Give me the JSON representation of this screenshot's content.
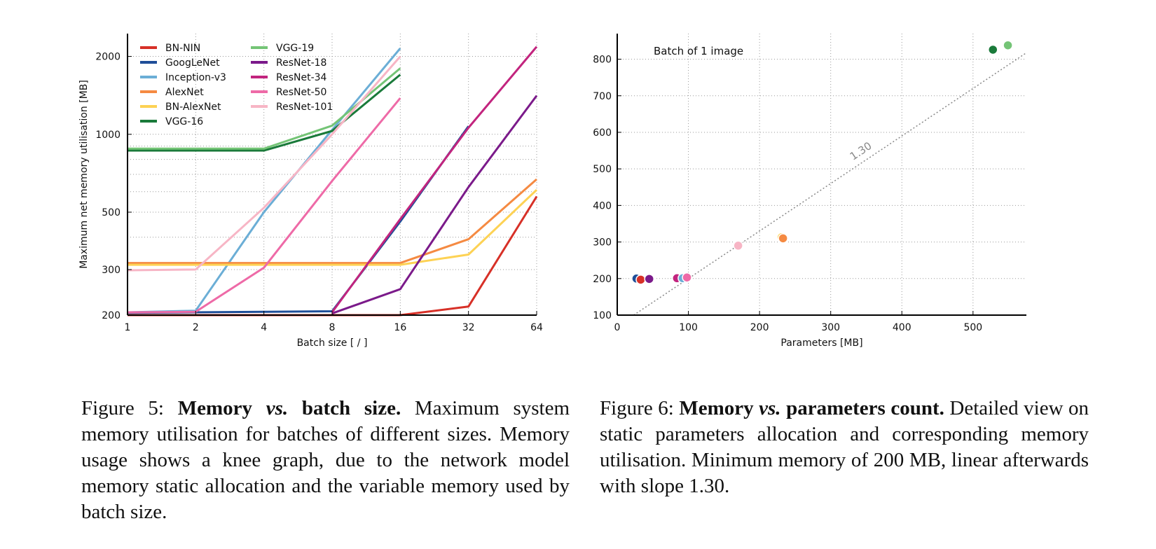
{
  "chart_data": [
    {
      "type": "line",
      "title": "",
      "xlabel": "Batch size [ / ]",
      "ylabel": "Maximum net memory utilisation [MB]",
      "x_scale": "log2",
      "y_scale": "log",
      "x": [
        1,
        2,
        4,
        8,
        16,
        32,
        64
      ],
      "x_tick_labels": [
        "1",
        "2",
        "4",
        "8",
        "16",
        "32",
        "64"
      ],
      "y_ticks": [
        200,
        300,
        500,
        1000,
        2000
      ],
      "y_tick_labels": [
        "200",
        "300",
        "500",
        "1000",
        "2000"
      ],
      "ylim": [
        200,
        2450
      ],
      "grid": true,
      "legend_position": "top-left",
      "series": [
        {
          "name": "BN-NIN",
          "color": "#d73027",
          "values": [
            200,
            200,
            200,
            200,
            200,
            216,
            575
          ]
        },
        {
          "name": "GoogLeNet",
          "color": "#1f4e98",
          "values": [
            204,
            205,
            206,
            207,
            460,
            1075,
            null
          ]
        },
        {
          "name": "Inception-v3",
          "color": "#6baed6",
          "values": [
            205,
            208,
            500,
            1040,
            2150,
            null,
            null
          ]
        },
        {
          "name": "AlexNet",
          "color": "#f58a42",
          "values": [
            318,
            318,
            318,
            318,
            318,
            393,
            670
          ]
        },
        {
          "name": "BN-AlexNet",
          "color": "#fdd254",
          "values": [
            313,
            313,
            313,
            313,
            313,
            343,
            610
          ]
        },
        {
          "name": "VGG-16",
          "color": "#1a7a3a",
          "values": [
            865,
            865,
            865,
            1030,
            1700,
            null,
            null
          ]
        },
        {
          "name": "VGG-19",
          "color": "#74c476",
          "values": [
            880,
            880,
            880,
            1080,
            1800,
            null,
            null
          ]
        },
        {
          "name": "ResNet-18",
          "color": "#7b1a8a",
          "values": [
            null,
            null,
            null,
            203,
            252,
            625,
            1410
          ]
        },
        {
          "name": "ResNet-34",
          "color": "#c2247e",
          "values": [
            null,
            null,
            null,
            205,
            470,
            1060,
            2180
          ]
        },
        {
          "name": "ResNet-50",
          "color": "#ee6aa7",
          "values": [
            205,
            206,
            305,
            660,
            1380,
            null,
            null
          ]
        },
        {
          "name": "ResNet-101",
          "color": "#f7b5c5",
          "values": [
            298,
            300,
            520,
            1000,
            2000,
            null,
            null
          ]
        }
      ]
    },
    {
      "type": "scatter",
      "title": "",
      "xlabel": "Parameters [MB]",
      "ylabel": "Maximum net memory utilisation [MB]",
      "xlim": [
        0,
        575
      ],
      "ylim": [
        100,
        870
      ],
      "x_ticks": [
        0,
        100,
        200,
        300,
        400,
        500
      ],
      "x_tick_labels": [
        "0",
        "100",
        "200",
        "300",
        "400",
        "500"
      ],
      "y_ticks": [
        100,
        200,
        300,
        400,
        500,
        600,
        700,
        800
      ],
      "y_tick_labels": [
        "100",
        "200",
        "300",
        "400",
        "500",
        "600",
        "700",
        "800"
      ],
      "grid": true,
      "annotation": "Batch of 1 image",
      "fit_line": {
        "slope": 1.3,
        "label": "1.30",
        "points": [
          [
            0,
            70
          ],
          [
            575,
            817.5
          ]
        ]
      },
      "points": [
        {
          "name": "GoogLeNet",
          "x": 27,
          "y": 200,
          "color": "#1f4e98"
        },
        {
          "name": "BN-NIN",
          "x": 33,
          "y": 197,
          "color": "#d73027"
        },
        {
          "name": "ResNet-18",
          "x": 45,
          "y": 199,
          "color": "#7b1a8a"
        },
        {
          "name": "ResNet-34",
          "x": 84,
          "y": 201,
          "color": "#c2247e"
        },
        {
          "name": "Inception-v3",
          "x": 92,
          "y": 201,
          "color": "#6baed6"
        },
        {
          "name": "ResNet-50",
          "x": 98,
          "y": 203,
          "color": "#ee6aa7"
        },
        {
          "name": "ResNet-101",
          "x": 170,
          "y": 290,
          "color": "#f7b5c5"
        },
        {
          "name": "BN-AlexNet",
          "x": 231,
          "y": 313,
          "color": "#fdd254"
        },
        {
          "name": "AlexNet",
          "x": 233,
          "y": 310,
          "color": "#f58a42"
        },
        {
          "name": "VGG-16",
          "x": 528,
          "y": 826,
          "color": "#1a7a3a"
        },
        {
          "name": "VGG-19",
          "x": 549,
          "y": 838,
          "color": "#74c476"
        }
      ]
    }
  ],
  "captions": {
    "fig5": {
      "label": "Figure 5:",
      "title_pre": "Memory",
      "title_vs": "vs.",
      "title_post": "batch size.",
      "body": "Maximum system memory utilisation for batches of different sizes. Memory usage shows a knee graph, due to the network model memory static allocation and the variable memory used by batch size."
    },
    "fig6": {
      "label": "Figure 6:",
      "title_pre": "Memory",
      "title_vs": "vs.",
      "title_post": "parameters count.",
      "body": "Detailed view on static parameters allocation and corresponding memory utilisation. Minimum memory of 200 MB, linear afterwards with slope 1.30."
    }
  }
}
